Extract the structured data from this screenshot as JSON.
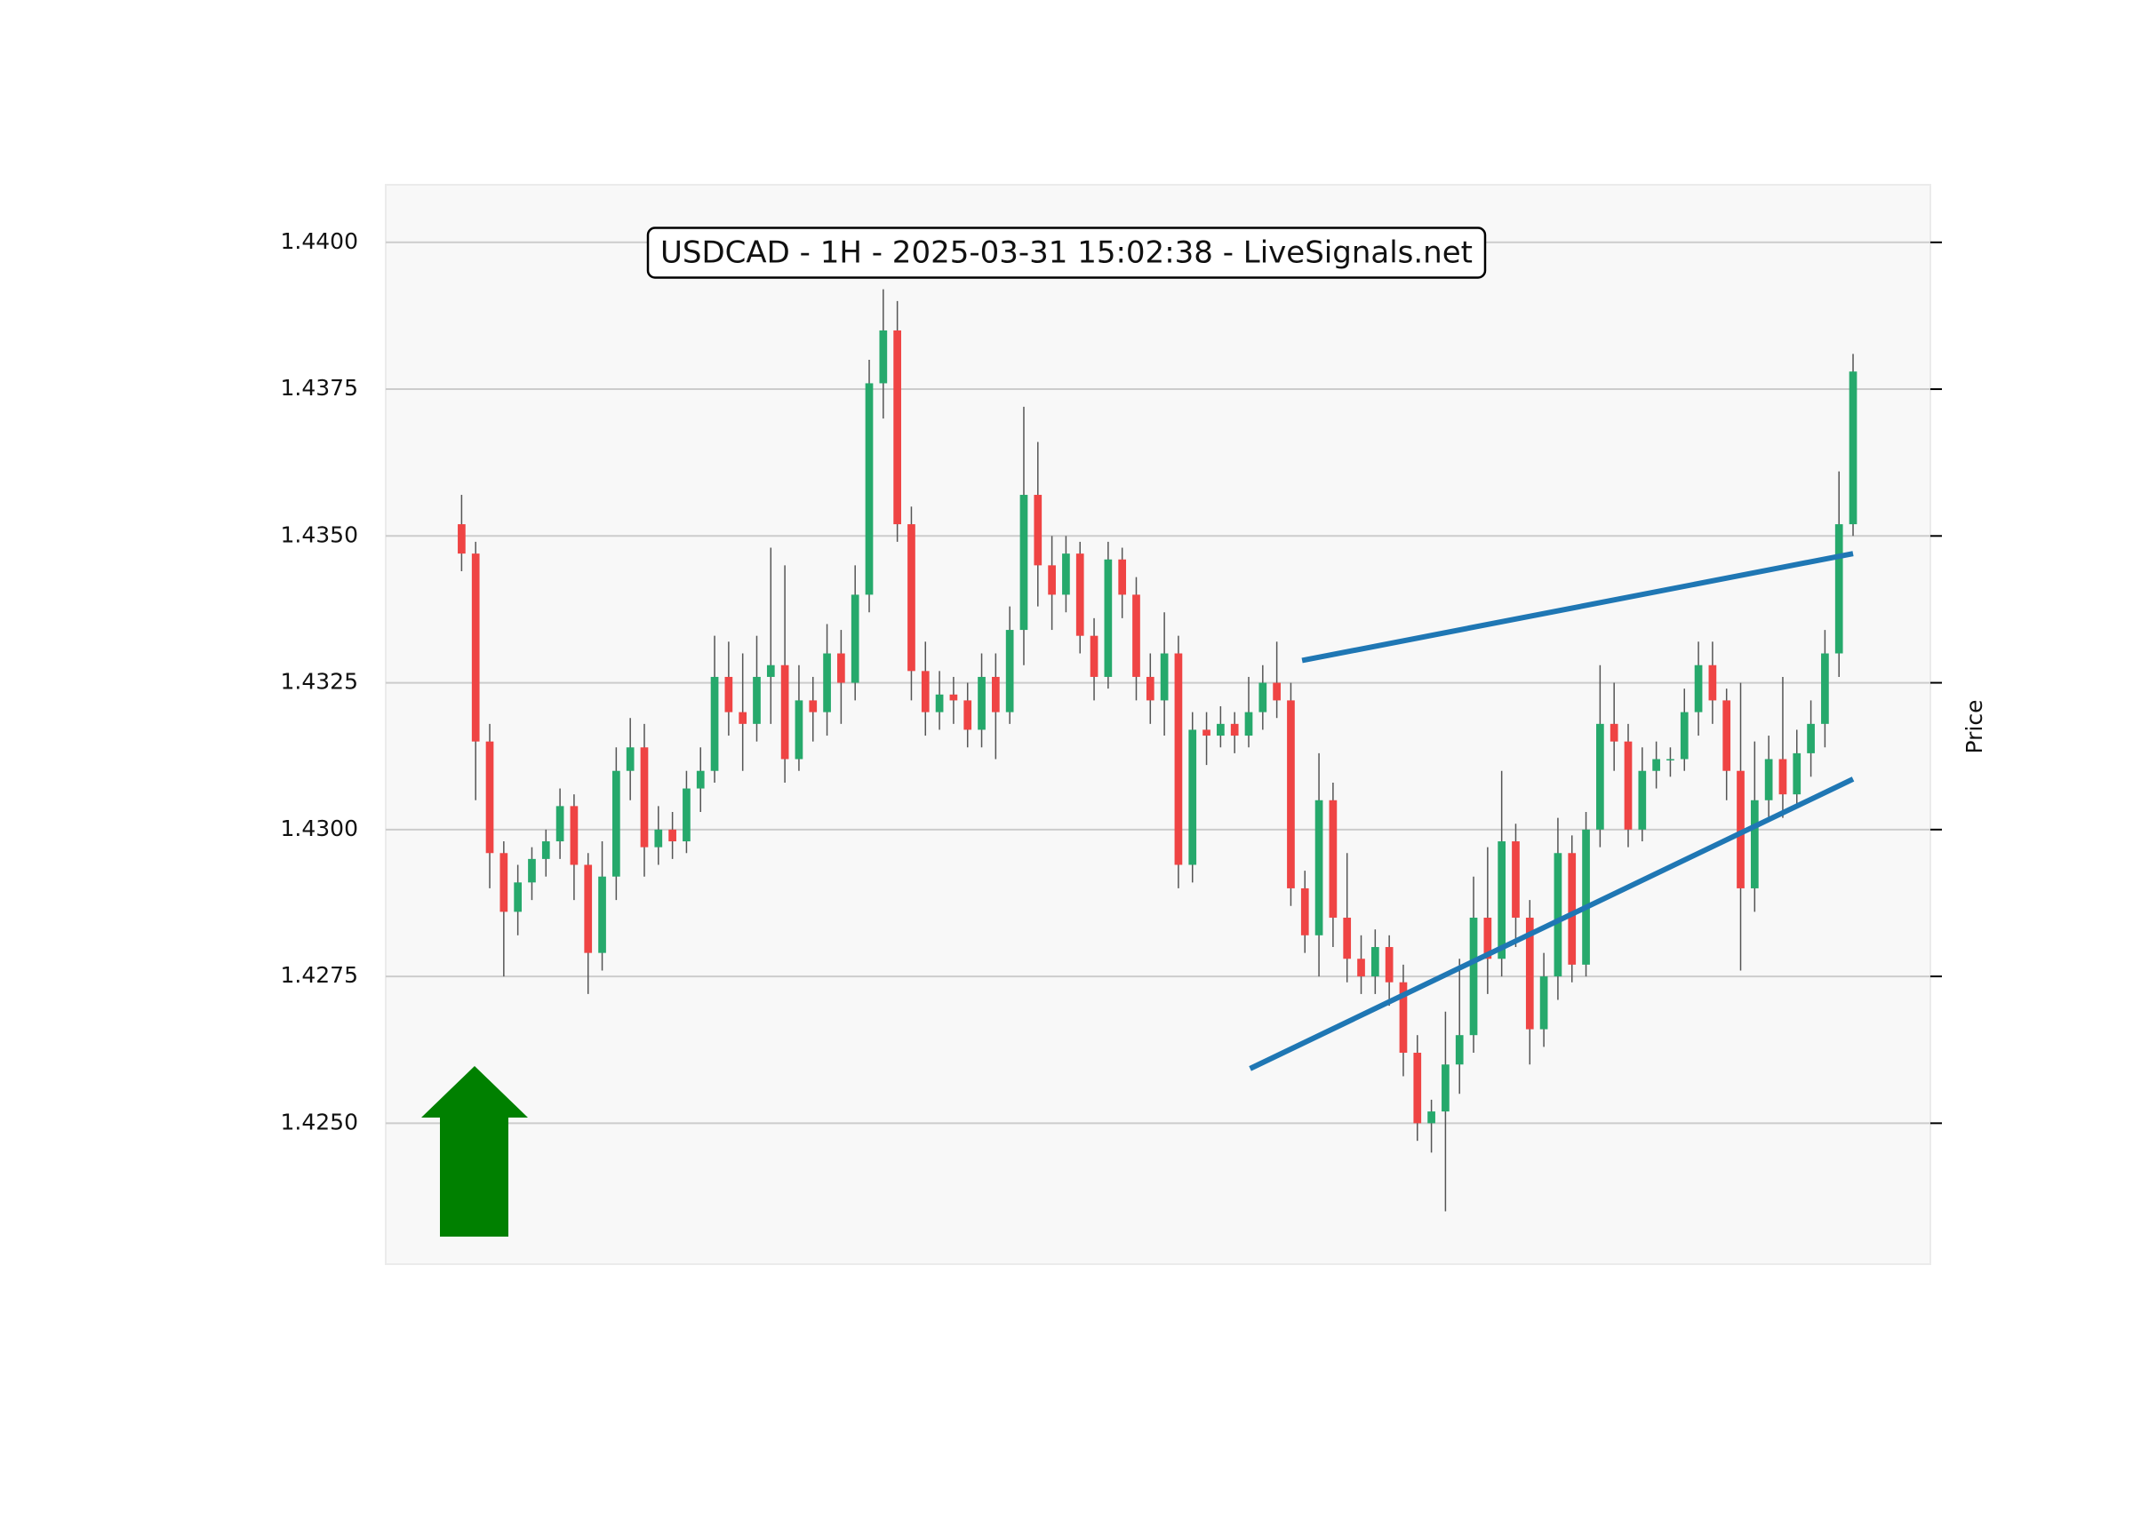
{
  "chart_data": {
    "type": "candlestick",
    "title": "USDCAD - 1H - 2025-03-31 15:02:38 - LiveSignals.net",
    "y_label": "Price",
    "ylim": [
      1.4226,
      1.44098
    ],
    "xlim": [
      -5.4,
      104.5
    ],
    "yticks": [
      {
        "value": 1.425,
        "label": "1.4250"
      },
      {
        "value": 1.4275,
        "label": "1.4275"
      },
      {
        "value": 1.43,
        "label": "1.4300"
      },
      {
        "value": 1.4325,
        "label": "1.4325"
      },
      {
        "value": 1.435,
        "label": "1.4350"
      },
      {
        "value": 1.4375,
        "label": "1.4375"
      },
      {
        "value": 1.44,
        "label": "1.4400"
      }
    ],
    "grid": true,
    "up_color": "#26a96c",
    "down_color": "#ef4444",
    "wick_color": "#555555",
    "open": [
      1.4352,
      1.4347,
      1.4315,
      1.4296,
      1.4286,
      1.4291,
      1.4295,
      1.4298,
      1.4304,
      1.4294,
      1.4279,
      1.4292,
      1.431,
      1.4314,
      1.4297,
      1.43,
      1.4298,
      1.4307,
      1.431,
      1.4326,
      1.432,
      1.4318,
      1.4326,
      1.4328,
      1.4312,
      1.4322,
      1.432,
      1.433,
      1.4325,
      1.434,
      1.4376,
      1.4385,
      1.4352,
      1.4327,
      1.432,
      1.4323,
      1.4322,
      1.4317,
      1.4326,
      1.432,
      1.4334,
      1.4357,
      1.4345,
      1.434,
      1.4347,
      1.4333,
      1.4326,
      1.4346,
      1.434,
      1.4326,
      1.4322,
      1.433,
      1.4294,
      1.4317,
      1.4316,
      1.4318,
      1.4316,
      1.432,
      1.4325,
      1.4322,
      1.429,
      1.4282,
      1.4305,
      1.4285,
      1.4278,
      1.4275,
      1.428,
      1.4274,
      1.4262,
      1.425,
      1.4252,
      1.426,
      1.4265,
      1.4285,
      1.4278,
      1.4298,
      1.4285,
      1.4266,
      1.4275,
      1.4296,
      1.4277,
      1.43,
      1.4318,
      1.4315,
      1.43,
      1.431,
      1.4312,
      1.4312,
      1.432,
      1.4328,
      1.4322,
      1.431,
      1.429,
      1.4305,
      1.4312,
      1.4306,
      1.4313,
      1.4318,
      1.433,
      1.4352
    ],
    "high": [
      1.4357,
      1.4349,
      1.4318,
      1.4298,
      1.4294,
      1.4297,
      1.43,
      1.4307,
      1.4306,
      1.4296,
      1.4298,
      1.4314,
      1.4319,
      1.4318,
      1.4304,
      1.4303,
      1.431,
      1.4314,
      1.4333,
      1.4332,
      1.433,
      1.4333,
      1.4348,
      1.4345,
      1.4328,
      1.4326,
      1.4335,
      1.4334,
      1.4345,
      1.438,
      1.4392,
      1.439,
      1.4355,
      1.4332,
      1.4327,
      1.4326,
      1.4325,
      1.433,
      1.433,
      1.4338,
      1.4372,
      1.4366,
      1.435,
      1.435,
      1.4349,
      1.4336,
      1.4349,
      1.4348,
      1.4343,
      1.433,
      1.4337,
      1.4333,
      1.432,
      1.432,
      1.4321,
      1.432,
      1.4326,
      1.4328,
      1.4332,
      1.4325,
      1.4293,
      1.4313,
      1.4308,
      1.4296,
      1.4282,
      1.4283,
      1.4282,
      1.4277,
      1.4265,
      1.4254,
      1.4269,
      1.4278,
      1.4292,
      1.4297,
      1.431,
      1.4301,
      1.4288,
      1.4279,
      1.4302,
      1.4299,
      1.4303,
      1.4328,
      1.4325,
      1.4318,
      1.4314,
      1.4315,
      1.4314,
      1.4324,
      1.4332,
      1.4332,
      1.4324,
      1.4325,
      1.4315,
      1.4316,
      1.4326,
      1.4317,
      1.4322,
      1.4334,
      1.4361,
      1.4381
    ],
    "low": [
      1.4344,
      1.4305,
      1.429,
      1.4275,
      1.4282,
      1.4288,
      1.4292,
      1.4295,
      1.4288,
      1.4272,
      1.4276,
      1.4288,
      1.4305,
      1.4292,
      1.4294,
      1.4295,
      1.4296,
      1.4303,
      1.4308,
      1.4316,
      1.431,
      1.4315,
      1.4318,
      1.4308,
      1.431,
      1.4315,
      1.4316,
      1.4318,
      1.4322,
      1.4337,
      1.437,
      1.4349,
      1.4322,
      1.4316,
      1.4317,
      1.4318,
      1.4314,
      1.4314,
      1.4312,
      1.4318,
      1.4328,
      1.4338,
      1.4334,
      1.4337,
      1.433,
      1.4322,
      1.4324,
      1.4336,
      1.4322,
      1.4318,
      1.4316,
      1.429,
      1.4291,
      1.4311,
      1.4314,
      1.4313,
      1.4314,
      1.4317,
      1.4319,
      1.4287,
      1.4279,
      1.4275,
      1.428,
      1.4274,
      1.4272,
      1.4272,
      1.427,
      1.4258,
      1.4247,
      1.4245,
      1.4235,
      1.4255,
      1.4262,
      1.4272,
      1.4275,
      1.428,
      1.426,
      1.4263,
      1.4271,
      1.4274,
      1.4275,
      1.4297,
      1.431,
      1.4297,
      1.4298,
      1.4307,
      1.4309,
      1.431,
      1.4316,
      1.4318,
      1.4305,
      1.4276,
      1.4286,
      1.4302,
      1.4302,
      1.4304,
      1.4309,
      1.4314,
      1.4326,
      1.435
    ],
    "close": [
      1.4347,
      1.4315,
      1.4296,
      1.4286,
      1.4291,
      1.4295,
      1.4298,
      1.4304,
      1.4294,
      1.4279,
      1.4292,
      1.431,
      1.4314,
      1.4297,
      1.43,
      1.4298,
      1.4307,
      1.431,
      1.4326,
      1.432,
      1.4318,
      1.4326,
      1.4328,
      1.4312,
      1.4322,
      1.432,
      1.433,
      1.4325,
      1.434,
      1.4376,
      1.4385,
      1.4352,
      1.4327,
      1.432,
      1.4323,
      1.4322,
      1.4317,
      1.4326,
      1.432,
      1.4334,
      1.4357,
      1.4345,
      1.434,
      1.4347,
      1.4333,
      1.4326,
      1.4346,
      1.434,
      1.4326,
      1.4322,
      1.433,
      1.4294,
      1.4317,
      1.4316,
      1.4318,
      1.4316,
      1.432,
      1.4325,
      1.4322,
      1.429,
      1.4282,
      1.4305,
      1.4285,
      1.4278,
      1.4275,
      1.428,
      1.4274,
      1.4262,
      1.425,
      1.4252,
      1.426,
      1.4265,
      1.4285,
      1.4278,
      1.4298,
      1.4285,
      1.4266,
      1.4275,
      1.4296,
      1.4277,
      1.43,
      1.4318,
      1.4315,
      1.43,
      1.431,
      1.4312,
      1.4312,
      1.432,
      1.4328,
      1.4322,
      1.431,
      1.429,
      1.4305,
      1.4312,
      1.4306,
      1.4313,
      1.4318,
      1.433,
      1.4352,
      1.4378
    ],
    "trendlines": [
      {
        "color": "#1f77b4",
        "x": [
          59.8,
          99
        ],
        "y": [
          1.43288,
          1.4347
        ]
      },
      {
        "color": "#1f77b4",
        "x": [
          56.1,
          99
        ],
        "y": [
          1.42593,
          1.43086
        ]
      }
    ]
  }
}
